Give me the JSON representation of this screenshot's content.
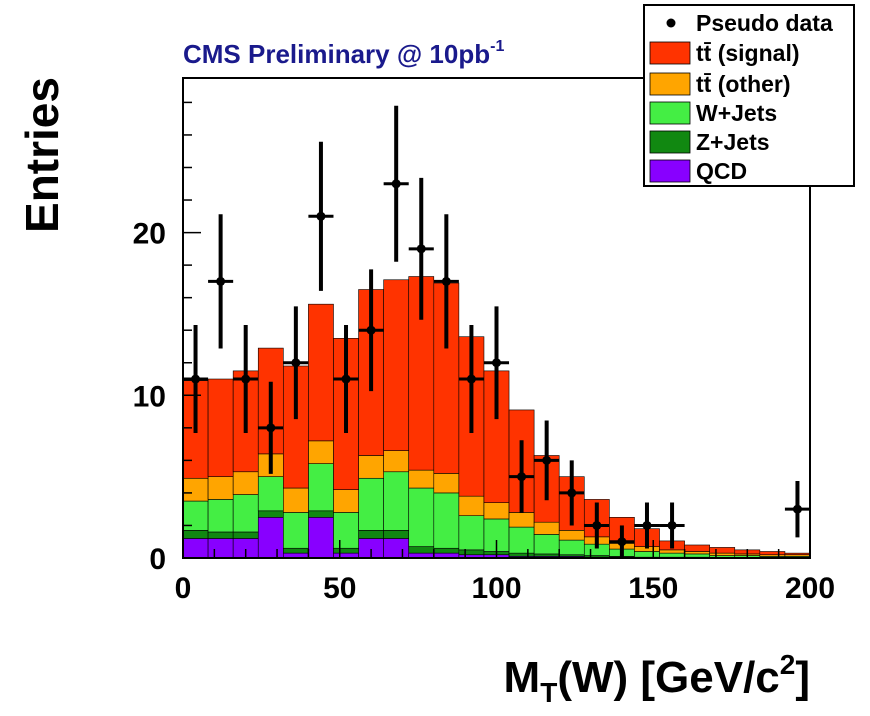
{
  "chart_data": {
    "type": "bar",
    "stacked": true,
    "title": "CMS Preliminary @ 10pb",
    "title_superscript": "-1",
    "title_color": "#1a1a8c",
    "xlabel_main": "M",
    "xlabel_sub": "T",
    "xlabel_mid": "(W) [GeV/c",
    "xlabel_sup": "2",
    "xlabel_end": "]",
    "ylabel": "Entries",
    "xlim": [
      0,
      200
    ],
    "ylim": [
      0,
      29.5
    ],
    "bin_width": 8,
    "x_tick_labels": [
      "0",
      "50",
      "100",
      "150",
      "200"
    ],
    "x_tick_values": [
      0,
      50,
      100,
      150,
      200
    ],
    "y_tick_labels": [
      "0",
      "10",
      "20"
    ],
    "y_tick_values": [
      0,
      10,
      20
    ],
    "legend_position": "top-right",
    "legend": [
      {
        "label": "Pseudo data",
        "marker": "point",
        "color": "#000000"
      },
      {
        "label": "tt̄ (signal)",
        "marker": "box",
        "color": "#ff3300"
      },
      {
        "label": "tt̄ (other)",
        "marker": "box",
        "color": "#ffa500"
      },
      {
        "label": "W+Jets",
        "marker": "box",
        "color": "#44ee44"
      },
      {
        "label": "Z+Jets",
        "marker": "box",
        "color": "#118811"
      },
      {
        "label": "QCD",
        "marker": "box",
        "color": "#8800ff"
      }
    ],
    "bin_edges": [
      0,
      8,
      16,
      24,
      32,
      40,
      48,
      56,
      64,
      72,
      80,
      88,
      96,
      104,
      112,
      120,
      128,
      136,
      144,
      152,
      160,
      168,
      176,
      184,
      192,
      200
    ],
    "series": [
      {
        "name": "QCD",
        "color": "#8800ff",
        "values": [
          1.2,
          1.2,
          1.2,
          2.5,
          0.3,
          2.5,
          0.3,
          1.2,
          1.2,
          0.3,
          0.3,
          0.2,
          0.2,
          0.1,
          0.1,
          0.1,
          0.05,
          0.05,
          0,
          0,
          0,
          0,
          0,
          0,
          0
        ]
      },
      {
        "name": "Z+Jets",
        "color": "#118811",
        "values": [
          0.5,
          0.4,
          0.4,
          0.4,
          0.3,
          0.4,
          0.3,
          0.5,
          0.5,
          0.4,
          0.3,
          0.3,
          0.2,
          0.2,
          0.15,
          0.1,
          0.1,
          0.05,
          0.05,
          0.05,
          0.05,
          0,
          0,
          0,
          0
        ]
      },
      {
        "name": "W+Jets",
        "color": "#44ee44",
        "values": [
          1.8,
          2.0,
          2.3,
          2.1,
          2.2,
          2.9,
          2.2,
          3.2,
          3.6,
          3.6,
          3.4,
          2.1,
          2.0,
          1.6,
          1.2,
          0.9,
          0.7,
          0.45,
          0.35,
          0.25,
          0.2,
          0.15,
          0.15,
          0.1,
          0.1
        ]
      },
      {
        "name": "tt̄ (other)",
        "color": "#ffa500",
        "values": [
          1.4,
          1.4,
          1.4,
          1.4,
          1.5,
          1.4,
          1.4,
          1.4,
          1.3,
          1.1,
          1.2,
          1.2,
          1.0,
          0.9,
          0.75,
          0.6,
          0.45,
          0.35,
          0.3,
          0.2,
          0.15,
          0.15,
          0.1,
          0.1,
          0.1
        ]
      },
      {
        "name": "tt̄ (signal)",
        "color": "#ff3300",
        "values": [
          6.0,
          6.0,
          6.2,
          6.5,
          7.5,
          8.4,
          9.3,
          10.2,
          10.5,
          11.9,
          11.7,
          9.8,
          8.1,
          6.3,
          4.1,
          3.3,
          2.3,
          1.6,
          1.1,
          0.55,
          0.4,
          0.35,
          0.25,
          0.2,
          0.1
        ]
      }
    ],
    "pseudo_data": {
      "name": "Pseudo data",
      "x": [
        4,
        12,
        20,
        28,
        36,
        44,
        52,
        60,
        68,
        76,
        84,
        92,
        100,
        108,
        116,
        124,
        132,
        140,
        148,
        156,
        196
      ],
      "y": [
        11,
        17,
        11,
        8,
        12,
        21,
        11,
        14,
        23,
        19,
        17,
        11,
        12,
        5,
        6,
        4,
        2,
        1,
        2,
        2,
        3
      ]
    }
  }
}
